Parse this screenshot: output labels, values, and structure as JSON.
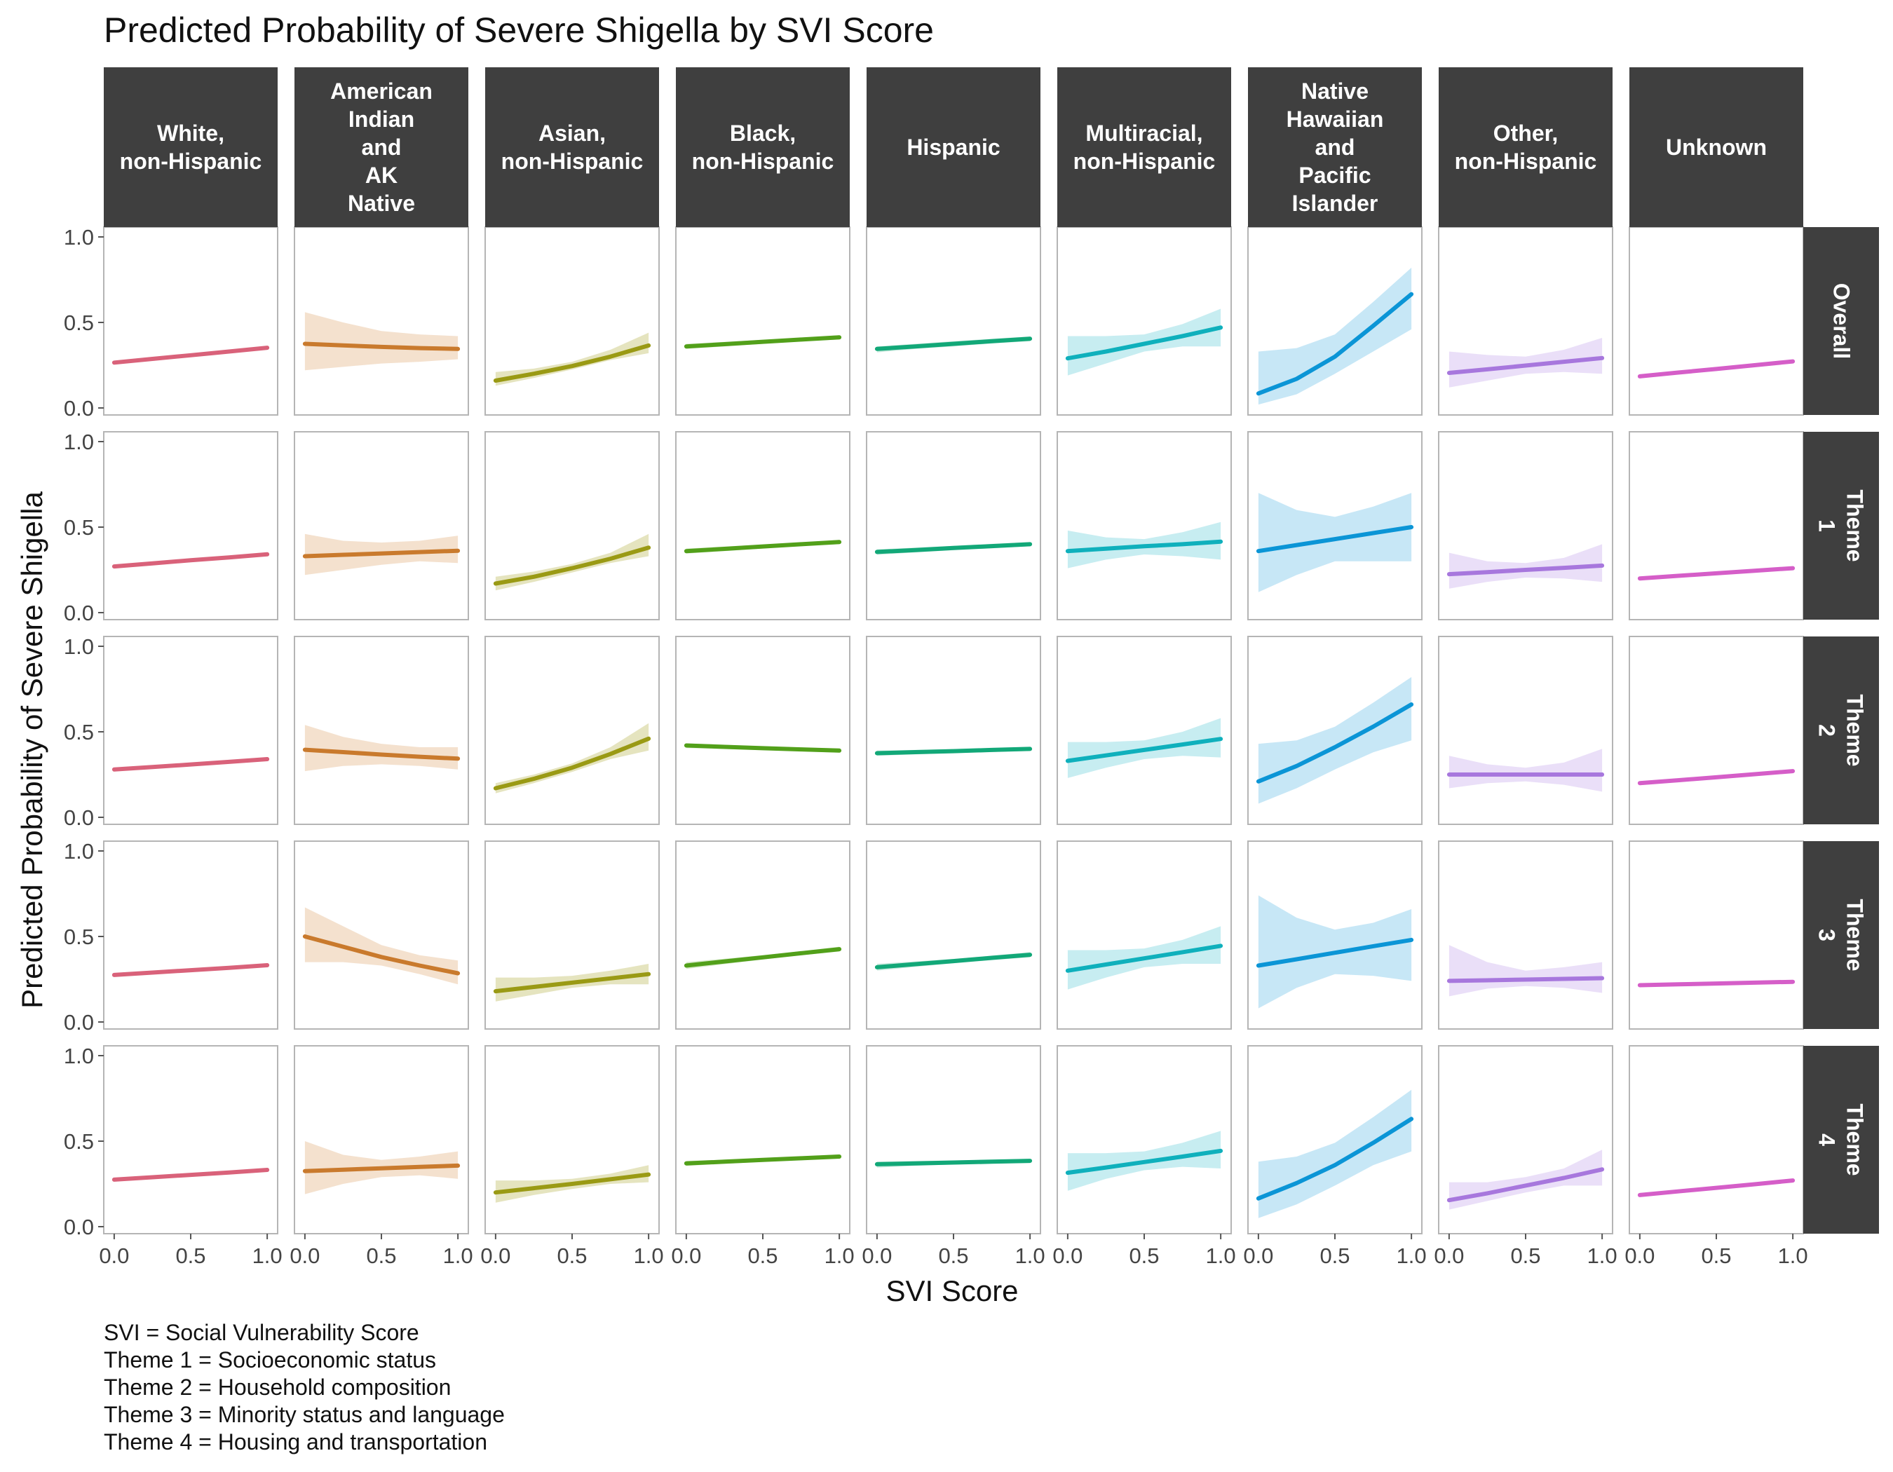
{
  "chart_data": {
    "type": "line",
    "title": "Predicted Probability of Severe Shigella by SVI Score",
    "xlabel": "SVI Score",
    "ylabel": "Predicted Probability of Severe Shigella",
    "xlim": [
      0,
      1
    ],
    "ylim": [
      0,
      1
    ],
    "x_ticks": [
      "0.0",
      "0.5",
      "1.0"
    ],
    "y_ticks": [
      "0.0",
      "0.5",
      "1.0"
    ],
    "grid": false,
    "legend": "none",
    "facet_columns": [
      "White,\nnon-Hispanic",
      "American\nIndian\nand\nAK\nNative",
      "Asian,\nnon-Hispanic",
      "Black,\nnon-Hispanic",
      "Hispanic",
      "Multiracial,\nnon-Hispanic",
      "Native\nHawaiian\nand\nPacific\nIslander",
      "Other,\nnon-Hispanic",
      "Unknown"
    ],
    "facet_rows": [
      "Overall",
      "Theme\n1",
      "Theme\n2",
      "Theme\n3",
      "Theme\n4"
    ],
    "colors": [
      "#d9627a",
      "#c97a2d",
      "#9a9a14",
      "#52a01a",
      "#12a878",
      "#0fb0bc",
      "#0b95d6",
      "#a777dd",
      "#d55ec8"
    ],
    "band_colors": [
      "#f3c8d0",
      "#f2dcc6",
      "#e0dfb4",
      "#cfe8c0",
      "#bfe6d8",
      "#bdeaef",
      "#bde3f5",
      "#e6d9f7",
      "#f5d2f0"
    ],
    "x": [
      0,
      0.25,
      0.5,
      0.75,
      1
    ],
    "panels": [
      [
        {
          "y": [
            0.265,
            0.287,
            0.308,
            0.33,
            0.352
          ],
          "lo": [
            0.255,
            0.278,
            0.3,
            0.321,
            0.342
          ],
          "hi": [
            0.275,
            0.296,
            0.317,
            0.339,
            0.362
          ]
        },
        {
          "y": [
            0.375,
            0.366,
            0.357,
            0.35,
            0.345
          ],
          "lo": [
            0.22,
            0.24,
            0.26,
            0.27,
            0.285
          ],
          "hi": [
            0.56,
            0.5,
            0.45,
            0.43,
            0.42
          ]
        },
        {
          "y": [
            0.16,
            0.2,
            0.245,
            0.3,
            0.365
          ],
          "lo": [
            0.13,
            0.175,
            0.225,
            0.28,
            0.32
          ],
          "hi": [
            0.21,
            0.23,
            0.27,
            0.34,
            0.44
          ]
        },
        {
          "y": [
            0.36,
            0.373,
            0.387,
            0.4,
            0.413
          ],
          "lo": [
            0.345,
            0.36,
            0.375,
            0.39,
            0.4
          ],
          "hi": [
            0.375,
            0.386,
            0.398,
            0.41,
            0.425
          ]
        },
        {
          "y": [
            0.345,
            0.36,
            0.375,
            0.39,
            0.405
          ],
          "lo": [
            0.325,
            0.345,
            0.36,
            0.377,
            0.39
          ],
          "hi": [
            0.36,
            0.375,
            0.39,
            0.404,
            0.418
          ]
        },
        {
          "y": [
            0.29,
            0.33,
            0.375,
            0.42,
            0.47
          ],
          "lo": [
            0.19,
            0.26,
            0.33,
            0.36,
            0.36
          ],
          "hi": [
            0.42,
            0.42,
            0.43,
            0.49,
            0.58
          ]
        },
        {
          "y": [
            0.085,
            0.17,
            0.3,
            0.48,
            0.665
          ],
          "lo": [
            0.02,
            0.08,
            0.2,
            0.33,
            0.46
          ],
          "hi": [
            0.33,
            0.35,
            0.43,
            0.62,
            0.82
          ]
        },
        {
          "y": [
            0.205,
            0.226,
            0.248,
            0.27,
            0.292
          ],
          "lo": [
            0.12,
            0.16,
            0.2,
            0.21,
            0.2
          ],
          "hi": [
            0.33,
            0.31,
            0.3,
            0.34,
            0.41
          ]
        },
        {
          "y": [
            0.185,
            0.207,
            0.228,
            0.25,
            0.272
          ],
          "lo": [
            0.175,
            0.197,
            0.219,
            0.24,
            0.262
          ],
          "hi": [
            0.195,
            0.216,
            0.237,
            0.26,
            0.282
          ]
        }
      ],
      [
        {
          "y": [
            0.27,
            0.288,
            0.306,
            0.323,
            0.341
          ],
          "lo": [
            0.26,
            0.279,
            0.297,
            0.314,
            0.331
          ],
          "hi": [
            0.28,
            0.297,
            0.315,
            0.332,
            0.351
          ]
        },
        {
          "y": [
            0.33,
            0.338,
            0.346,
            0.354,
            0.362
          ],
          "lo": [
            0.22,
            0.25,
            0.28,
            0.3,
            0.29
          ],
          "hi": [
            0.46,
            0.42,
            0.41,
            0.42,
            0.45
          ]
        },
        {
          "y": [
            0.17,
            0.21,
            0.26,
            0.315,
            0.38
          ],
          "lo": [
            0.13,
            0.18,
            0.235,
            0.29,
            0.33
          ],
          "hi": [
            0.21,
            0.24,
            0.285,
            0.35,
            0.46
          ]
        },
        {
          "y": [
            0.36,
            0.373,
            0.387,
            0.4,
            0.413
          ],
          "lo": [
            0.345,
            0.36,
            0.375,
            0.39,
            0.4
          ],
          "hi": [
            0.375,
            0.386,
            0.398,
            0.41,
            0.425
          ]
        },
        {
          "y": [
            0.355,
            0.366,
            0.378,
            0.389,
            0.4
          ],
          "lo": [
            0.338,
            0.352,
            0.365,
            0.376,
            0.388
          ],
          "hi": [
            0.37,
            0.38,
            0.39,
            0.402,
            0.412
          ]
        },
        {
          "y": [
            0.36,
            0.374,
            0.388,
            0.4,
            0.415
          ],
          "lo": [
            0.26,
            0.31,
            0.34,
            0.33,
            0.31
          ],
          "hi": [
            0.48,
            0.44,
            0.43,
            0.47,
            0.53
          ]
        },
        {
          "y": [
            0.36,
            0.395,
            0.43,
            0.465,
            0.5
          ],
          "lo": [
            0.12,
            0.22,
            0.3,
            0.3,
            0.3
          ],
          "hi": [
            0.7,
            0.6,
            0.56,
            0.62,
            0.7
          ]
        },
        {
          "y": [
            0.225,
            0.237,
            0.25,
            0.262,
            0.275
          ],
          "lo": [
            0.14,
            0.18,
            0.205,
            0.2,
            0.18
          ],
          "hi": [
            0.35,
            0.3,
            0.29,
            0.32,
            0.4
          ]
        },
        {
          "y": [
            0.2,
            0.215,
            0.23,
            0.245,
            0.26
          ],
          "lo": [
            0.19,
            0.206,
            0.221,
            0.236,
            0.25
          ],
          "hi": [
            0.21,
            0.224,
            0.239,
            0.254,
            0.27
          ]
        }
      ],
      [
        {
          "y": [
            0.28,
            0.294,
            0.309,
            0.324,
            0.34
          ],
          "lo": [
            0.27,
            0.285,
            0.3,
            0.315,
            0.33
          ],
          "hi": [
            0.29,
            0.303,
            0.318,
            0.333,
            0.35
          ]
        },
        {
          "y": [
            0.395,
            0.381,
            0.367,
            0.354,
            0.343
          ],
          "lo": [
            0.27,
            0.3,
            0.31,
            0.3,
            0.28
          ],
          "hi": [
            0.54,
            0.47,
            0.43,
            0.41,
            0.41
          ]
        },
        {
          "y": [
            0.17,
            0.225,
            0.29,
            0.37,
            0.46
          ],
          "lo": [
            0.14,
            0.2,
            0.265,
            0.34,
            0.39
          ],
          "hi": [
            0.2,
            0.25,
            0.315,
            0.41,
            0.55
          ]
        },
        {
          "y": [
            0.42,
            0.412,
            0.404,
            0.397,
            0.39
          ],
          "lo": [
            0.405,
            0.4,
            0.393,
            0.386,
            0.378
          ],
          "hi": [
            0.432,
            0.424,
            0.415,
            0.408,
            0.402
          ]
        },
        {
          "y": [
            0.375,
            0.381,
            0.387,
            0.394,
            0.4
          ],
          "lo": [
            0.36,
            0.368,
            0.376,
            0.382,
            0.388
          ],
          "hi": [
            0.39,
            0.394,
            0.399,
            0.405,
            0.412
          ]
        },
        {
          "y": [
            0.33,
            0.362,
            0.394,
            0.426,
            0.458
          ],
          "lo": [
            0.23,
            0.29,
            0.34,
            0.36,
            0.35
          ],
          "hi": [
            0.44,
            0.44,
            0.45,
            0.5,
            0.58
          ]
        },
        {
          "y": [
            0.21,
            0.3,
            0.41,
            0.53,
            0.66
          ],
          "lo": [
            0.08,
            0.17,
            0.28,
            0.38,
            0.45
          ],
          "hi": [
            0.43,
            0.45,
            0.53,
            0.67,
            0.82
          ]
        },
        {
          "y": [
            0.25,
            0.25,
            0.25,
            0.25,
            0.25
          ],
          "lo": [
            0.17,
            0.2,
            0.21,
            0.19,
            0.15
          ],
          "hi": [
            0.36,
            0.31,
            0.29,
            0.32,
            0.4
          ]
        },
        {
          "y": [
            0.2,
            0.217,
            0.234,
            0.252,
            0.27
          ],
          "lo": [
            0.19,
            0.208,
            0.225,
            0.243,
            0.26
          ],
          "hi": [
            0.21,
            0.226,
            0.243,
            0.261,
            0.28
          ]
        }
      ],
      [
        {
          "y": [
            0.275,
            0.289,
            0.303,
            0.317,
            0.332
          ],
          "lo": [
            0.265,
            0.28,
            0.294,
            0.308,
            0.322
          ],
          "hi": [
            0.285,
            0.298,
            0.312,
            0.326,
            0.342
          ]
        },
        {
          "y": [
            0.5,
            0.44,
            0.38,
            0.33,
            0.285
          ],
          "lo": [
            0.35,
            0.35,
            0.33,
            0.28,
            0.22
          ],
          "hi": [
            0.67,
            0.56,
            0.45,
            0.39,
            0.36
          ]
        },
        {
          "y": [
            0.18,
            0.205,
            0.23,
            0.255,
            0.28
          ],
          "lo": [
            0.12,
            0.16,
            0.2,
            0.22,
            0.22
          ],
          "hi": [
            0.26,
            0.26,
            0.27,
            0.3,
            0.34
          ]
        },
        {
          "y": [
            0.33,
            0.354,
            0.378,
            0.402,
            0.426
          ],
          "lo": [
            0.31,
            0.338,
            0.365,
            0.39,
            0.412
          ],
          "hi": [
            0.35,
            0.37,
            0.391,
            0.414,
            0.44
          ]
        },
        {
          "y": [
            0.32,
            0.338,
            0.356,
            0.375,
            0.393
          ],
          "lo": [
            0.3,
            0.322,
            0.343,
            0.362,
            0.378
          ],
          "hi": [
            0.34,
            0.354,
            0.369,
            0.388,
            0.408
          ]
        },
        {
          "y": [
            0.3,
            0.336,
            0.372,
            0.408,
            0.445
          ],
          "lo": [
            0.19,
            0.26,
            0.32,
            0.34,
            0.34
          ],
          "hi": [
            0.42,
            0.42,
            0.43,
            0.48,
            0.56
          ]
        },
        {
          "y": [
            0.33,
            0.367,
            0.405,
            0.443,
            0.48
          ],
          "lo": [
            0.08,
            0.2,
            0.28,
            0.27,
            0.24
          ],
          "hi": [
            0.74,
            0.61,
            0.54,
            0.58,
            0.66
          ]
        },
        {
          "y": [
            0.24,
            0.244,
            0.248,
            0.252,
            0.256
          ],
          "lo": [
            0.15,
            0.195,
            0.21,
            0.2,
            0.17
          ],
          "hi": [
            0.45,
            0.35,
            0.3,
            0.32,
            0.35
          ]
        },
        {
          "y": [
            0.215,
            0.22,
            0.225,
            0.23,
            0.235
          ],
          "lo": [
            0.205,
            0.211,
            0.216,
            0.221,
            0.225
          ],
          "hi": [
            0.225,
            0.229,
            0.234,
            0.239,
            0.245
          ]
        }
      ],
      [
        {
          "y": [
            0.275,
            0.289,
            0.303,
            0.317,
            0.332
          ],
          "lo": [
            0.265,
            0.28,
            0.294,
            0.308,
            0.322
          ],
          "hi": [
            0.285,
            0.298,
            0.312,
            0.326,
            0.342
          ]
        },
        {
          "y": [
            0.325,
            0.333,
            0.341,
            0.349,
            0.357
          ],
          "lo": [
            0.19,
            0.25,
            0.29,
            0.3,
            0.28
          ],
          "hi": [
            0.5,
            0.42,
            0.39,
            0.41,
            0.44
          ]
        },
        {
          "y": [
            0.2,
            0.225,
            0.25,
            0.277,
            0.305
          ],
          "lo": [
            0.14,
            0.185,
            0.22,
            0.25,
            0.26
          ],
          "hi": [
            0.27,
            0.27,
            0.28,
            0.31,
            0.36
          ]
        },
        {
          "y": [
            0.37,
            0.38,
            0.39,
            0.4,
            0.41
          ],
          "lo": [
            0.355,
            0.368,
            0.379,
            0.39,
            0.398
          ],
          "hi": [
            0.385,
            0.392,
            0.401,
            0.41,
            0.422
          ]
        },
        {
          "y": [
            0.365,
            0.37,
            0.375,
            0.38,
            0.385
          ],
          "lo": [
            0.345,
            0.356,
            0.364,
            0.369,
            0.373
          ],
          "hi": [
            0.38,
            0.384,
            0.387,
            0.391,
            0.397
          ]
        },
        {
          "y": [
            0.315,
            0.346,
            0.378,
            0.41,
            0.443
          ],
          "lo": [
            0.21,
            0.28,
            0.33,
            0.35,
            0.34
          ],
          "hi": [
            0.43,
            0.43,
            0.44,
            0.49,
            0.56
          ]
        },
        {
          "y": [
            0.165,
            0.255,
            0.36,
            0.49,
            0.63
          ],
          "lo": [
            0.05,
            0.13,
            0.24,
            0.36,
            0.44
          ],
          "hi": [
            0.38,
            0.41,
            0.49,
            0.64,
            0.8
          ]
        },
        {
          "y": [
            0.155,
            0.195,
            0.24,
            0.285,
            0.335
          ],
          "lo": [
            0.1,
            0.15,
            0.2,
            0.24,
            0.24
          ],
          "hi": [
            0.26,
            0.26,
            0.29,
            0.34,
            0.45
          ]
        },
        {
          "y": [
            0.185,
            0.206,
            0.227,
            0.248,
            0.27
          ],
          "lo": [
            0.175,
            0.197,
            0.218,
            0.239,
            0.26
          ],
          "hi": [
            0.195,
            0.215,
            0.236,
            0.257,
            0.28
          ]
        }
      ]
    ]
  },
  "footnotes": [
    "SVI = Social Vulnerability Score",
    "Theme 1 = Socioeconomic status",
    "Theme 2 = Household composition",
    "Theme 3 = Minority status and language",
    "Theme 4 = Housing and transportation"
  ]
}
